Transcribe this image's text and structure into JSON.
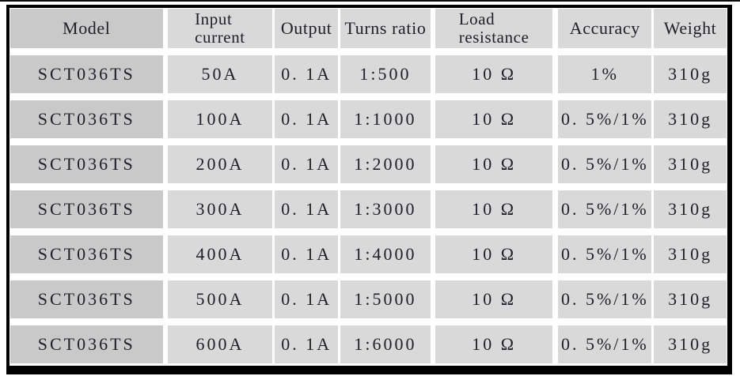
{
  "table": {
    "headers": [
      {
        "id": "model",
        "lines": [
          "Model"
        ]
      },
      {
        "id": "input-current",
        "lines": [
          "Input",
          "current"
        ]
      },
      {
        "id": "output",
        "lines": [
          "Output"
        ]
      },
      {
        "id": "turns-ratio",
        "lines": [
          "Turns ratio"
        ]
      },
      {
        "id": "load-resistance",
        "lines": [
          "Load",
          "resistance"
        ]
      },
      {
        "id": "accuracy",
        "lines": [
          "Accuracy"
        ]
      },
      {
        "id": "weight",
        "lines": [
          "Weight"
        ]
      }
    ],
    "rows": [
      {
        "model": "SCT036TS",
        "input_current": "50A",
        "output": "0. 1A",
        "turns_ratio": "1:500",
        "load_resistance": "10 Ω",
        "accuracy": "1%",
        "weight": "310g"
      },
      {
        "model": "SCT036TS",
        "input_current": "100A",
        "output": "0. 1A",
        "turns_ratio": "1:1000",
        "load_resistance": "10 Ω",
        "accuracy": "0. 5%/1%",
        "weight": "310g"
      },
      {
        "model": "SCT036TS",
        "input_current": "200A",
        "output": "0. 1A",
        "turns_ratio": "1:2000",
        "load_resistance": "10 Ω",
        "accuracy": "0. 5%/1%",
        "weight": "310g"
      },
      {
        "model": "SCT036TS",
        "input_current": "300A",
        "output": "0. 1A",
        "turns_ratio": "1:3000",
        "load_resistance": "10 Ω",
        "accuracy": "0. 5%/1%",
        "weight": "310g"
      },
      {
        "model": "SCT036TS",
        "input_current": "400A",
        "output": "0. 1A",
        "turns_ratio": "1:4000",
        "load_resistance": "10 Ω",
        "accuracy": "0. 5%/1%",
        "weight": "310g"
      },
      {
        "model": "SCT036TS",
        "input_current": "500A",
        "output": "0. 1A",
        "turns_ratio": "1:5000",
        "load_resistance": "10 Ω",
        "accuracy": "0. 5%/1%",
        "weight": "310g"
      },
      {
        "model": "SCT036TS",
        "input_current": "600A",
        "output": "0. 1A",
        "turns_ratio": "1:6000",
        "load_resistance": "10 Ω",
        "accuracy": "0. 5%/1%",
        "weight": "310g"
      }
    ],
    "colors": {
      "model_column_cell": "#c9c9c9",
      "cell": "#d9d9d9",
      "gap": "#ffffff",
      "border": "#000000",
      "text": "#20202a"
    }
  }
}
